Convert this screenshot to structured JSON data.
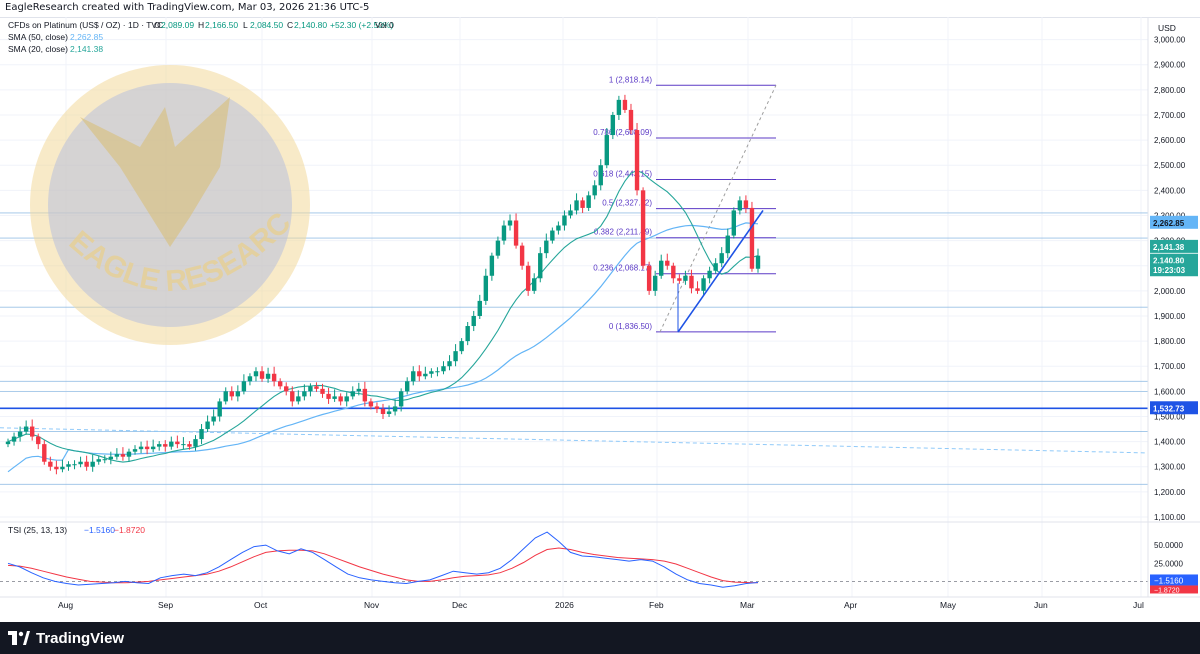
{
  "header": {
    "created_by": "EagleResearch created with TradingView.com, Mar 03, 2026 21:36 UTC-5"
  },
  "legend": {
    "symbol": "CFDs on Platinum (US$ / OZ) · 1D · TVC",
    "o_label": "O",
    "o_value": "2,089.09",
    "h_label": "H",
    "h_value": "2,166.50",
    "l_label": "L",
    "l_value": "2,084.50",
    "c_label": "C",
    "c_value": "2,140.80",
    "change": "+52.30 (+2.50%)",
    "vol": "Vol 0",
    "sma50_label": "SMA (50, close)",
    "sma50_value": "2,262.85",
    "sma20_label": "SMA (20, close)",
    "sma20_value": "2,141.38"
  },
  "watermark": {
    "text": "EAGLE RESEARCH"
  },
  "colors": {
    "up": "#089981",
    "down": "#f23645",
    "sma50": "#64b5f6",
    "sma20": "#26a69a",
    "fib": "#5b3ac6",
    "trend": "#1e53e5",
    "hline": "#6fa8dc",
    "tsi": "#2962ff",
    "signal": "#f23645"
  },
  "chart_data": [
    {
      "type": "candlestick",
      "title": "CFDs on Platinum (US$ / OZ) · 1D · TVC",
      "currency": "USD",
      "y_ticks": [
        "1,100.00",
        "1,200.00",
        "1,300.00",
        "1,400.00",
        "1,500.00",
        "1,600.00",
        "1,700.00",
        "1,800.00",
        "1,900.00",
        "2,000.00",
        "2,100.00",
        "2,200.00",
        "2,300.00",
        "2,400.00",
        "2,500.00",
        "2,600.00",
        "2,700.00",
        "2,800.00",
        "2,900.00",
        "3,000.00"
      ],
      "ylim": [
        1100,
        3050
      ],
      "x_ticks": [
        "Aug",
        "Sep",
        "Oct",
        "Nov",
        "Dec",
        "2026",
        "Feb",
        "Mar",
        "Apr",
        "May",
        "Jun",
        "Jul"
      ],
      "grid": true,
      "price_labels": {
        "sma50": "2,262.85",
        "sma20": "2,141.38",
        "close": "2,140.80",
        "countdown": "19:23:03",
        "hline": "1,532.73"
      },
      "horizontal_levels": [
        2310,
        2210,
        1935,
        1640,
        1600,
        1532.73,
        1440,
        1230
      ],
      "fibonacci": {
        "levels": [
          {
            "ratio": "1",
            "price": 2818.14,
            "label": "1 (2,818.14)"
          },
          {
            "ratio": "0.786",
            "price": 2608.09,
            "label": "0.786 (2,608.09)"
          },
          {
            "ratio": "0.618",
            "price": 2443.15,
            "label": "0.618 (2,443.15)"
          },
          {
            "ratio": "0.5",
            "price": 2327.32,
            "label": "0.5 (2,327.32)"
          },
          {
            "ratio": "0.382",
            "price": 2211.49,
            "label": "0.382 (2,211.49)"
          },
          {
            "ratio": "0.236",
            "price": 2068.17,
            "label": "0.236 (2,068.17)"
          },
          {
            "ratio": "0",
            "price": 1836.5,
            "label": "0 (1,836.50)"
          }
        ]
      },
      "series": [
        {
          "name": "SMA (50, close)",
          "last": 2262.85
        },
        {
          "name": "SMA (20, close)",
          "last": 2141.38
        }
      ],
      "close_path": [
        1400,
        1420,
        1440,
        1460,
        1420,
        1390,
        1320,
        1300,
        1290,
        1300,
        1310,
        1310,
        1320,
        1300,
        1320,
        1330,
        1330,
        1340,
        1350,
        1340,
        1360,
        1370,
        1380,
        1370,
        1380,
        1390,
        1380,
        1400,
        1390,
        1390,
        1380,
        1410,
        1450,
        1480,
        1500,
        1560,
        1600,
        1580,
        1600,
        1640,
        1660,
        1680,
        1650,
        1670,
        1640,
        1620,
        1600,
        1560,
        1580,
        1600,
        1620,
        1610,
        1590,
        1570,
        1580,
        1560,
        1580,
        1600,
        1610,
        1560,
        1540,
        1530,
        1510,
        1520,
        1540,
        1600,
        1640,
        1680,
        1660,
        1670,
        1680,
        1680,
        1700,
        1720,
        1760,
        1800,
        1860,
        1900,
        1960,
        2060,
        2140,
        2200,
        2260,
        2280,
        2180,
        2100,
        2000,
        2050,
        2150,
        2200,
        2240,
        2260,
        2300,
        2320,
        2360,
        2330,
        2380,
        2420,
        2500,
        2620,
        2700,
        2760,
        2720,
        2640,
        2400,
        2100,
        2000,
        2060,
        2120,
        2100,
        2050,
        2040,
        2060,
        2010,
        2000,
        2050,
        2080,
        2110,
        2150,
        2220,
        2320,
        2360,
        2330,
        2088,
        2140
      ]
    },
    {
      "type": "line",
      "title": "TSI (25, 13, 13)",
      "y_ticks": [
        "50.0000",
        "25.0000"
      ],
      "series": [
        {
          "name": "TSI",
          "last": -1.516,
          "label": "−1.5160"
        },
        {
          "name": "Signal",
          "last": -1.872,
          "label": "−1.8720"
        }
      ],
      "tsi_path": [
        25,
        20,
        12,
        5,
        0,
        -3,
        -5,
        -4,
        -3,
        -2,
        0,
        -2,
        -3,
        5,
        8,
        10,
        8,
        12,
        20,
        30,
        40,
        48,
        50,
        42,
        38,
        45,
        40,
        30,
        20,
        10,
        5,
        2,
        0,
        -2,
        -3,
        0,
        2,
        8,
        14,
        12,
        10,
        12,
        18,
        30,
        45,
        60,
        68,
        55,
        40,
        35,
        34,
        32,
        30,
        28,
        30,
        28,
        20,
        10,
        2,
        -3,
        -5,
        -8,
        -6,
        -3,
        -1.5
      ],
      "signal_path": [
        22,
        21,
        18,
        14,
        10,
        6,
        3,
        0,
        -1,
        -2,
        -2,
        -1,
        0,
        2,
        4,
        6,
        8,
        10,
        14,
        20,
        27,
        34,
        40,
        42,
        43,
        43,
        42,
        38,
        32,
        26,
        20,
        15,
        10,
        6,
        2,
        0,
        0,
        2,
        5,
        7,
        8,
        9,
        12,
        18,
        26,
        36,
        44,
        46,
        44,
        40,
        37,
        35,
        33,
        32,
        31,
        30,
        28,
        24,
        18,
        12,
        6,
        1,
        -1,
        -1.5,
        -1.9
      ]
    }
  ],
  "footer": {
    "brand": "TradingView"
  }
}
